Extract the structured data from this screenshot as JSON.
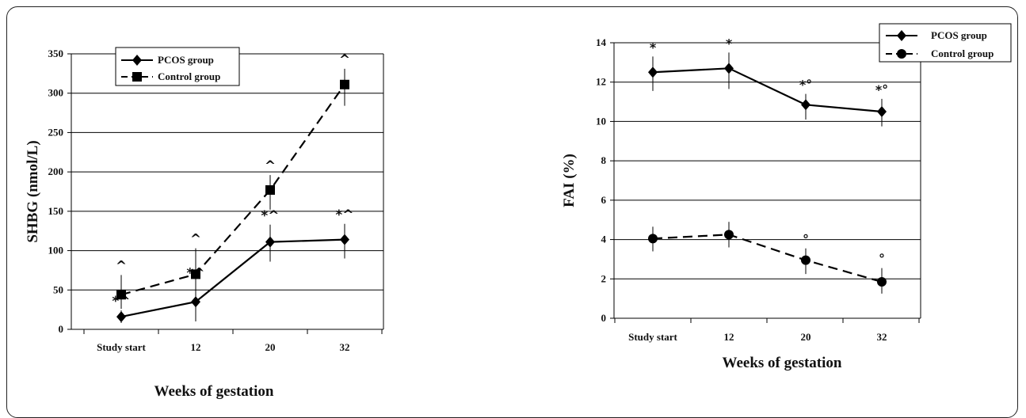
{
  "chart_data": [
    {
      "type": "line",
      "ylabel": "SHBG (nmol/L)",
      "xlabel": "Weeks of gestation",
      "categories": [
        "Study start",
        "12",
        "20",
        "32"
      ],
      "ylim": [
        0,
        350
      ],
      "yticks": [
        0,
        50,
        100,
        150,
        200,
        250,
        300,
        350
      ],
      "grid": true,
      "legend_position": "top-left",
      "series": [
        {
          "name": "PCOS group",
          "marker": "diamond",
          "dash": "solid",
          "values": [
            16,
            35,
            111,
            114
          ],
          "err_low": [
            8,
            25,
            25,
            24
          ],
          "err_high": [
            8,
            25,
            22,
            20
          ],
          "annotations": [
            "*^",
            "*^",
            "*^",
            "*^"
          ]
        },
        {
          "name": "Control group",
          "marker": "square",
          "dash": "dashed",
          "values": [
            44,
            70,
            177,
            311
          ],
          "err_low": [
            18,
            20,
            25,
            27
          ],
          "err_high": [
            25,
            33,
            19,
            20
          ],
          "annotations": [
            "^",
            "^",
            "^",
            "^"
          ]
        }
      ]
    },
    {
      "type": "line",
      "ylabel": "FAI (%)",
      "xlabel": "Weeks of gestation",
      "categories": [
        "Study start",
        "12",
        "20",
        "32"
      ],
      "ylim": [
        0,
        14
      ],
      "yticks": [
        0,
        2,
        4,
        6,
        8,
        10,
        12,
        14
      ],
      "grid": true,
      "legend_position": "top-right",
      "series": [
        {
          "name": "PCOS group",
          "marker": "diamond",
          "dash": "solid",
          "values": [
            12.5,
            12.7,
            10.85,
            10.5
          ],
          "err_low": [
            0.95,
            1.05,
            0.75,
            0.75
          ],
          "err_high": [
            0.8,
            0.8,
            0.55,
            0.65
          ],
          "annotations": [
            "*",
            "*",
            "*°",
            "*°"
          ]
        },
        {
          "name": "Control group",
          "marker": "circle",
          "dash": "dashed",
          "values": [
            4.05,
            4.25,
            2.95,
            1.85
          ],
          "err_low": [
            0.65,
            0.65,
            0.7,
            0.6
          ],
          "err_high": [
            0.6,
            0.65,
            0.6,
            0.7
          ],
          "annotations": [
            "",
            "",
            "°",
            "°"
          ]
        }
      ]
    }
  ]
}
